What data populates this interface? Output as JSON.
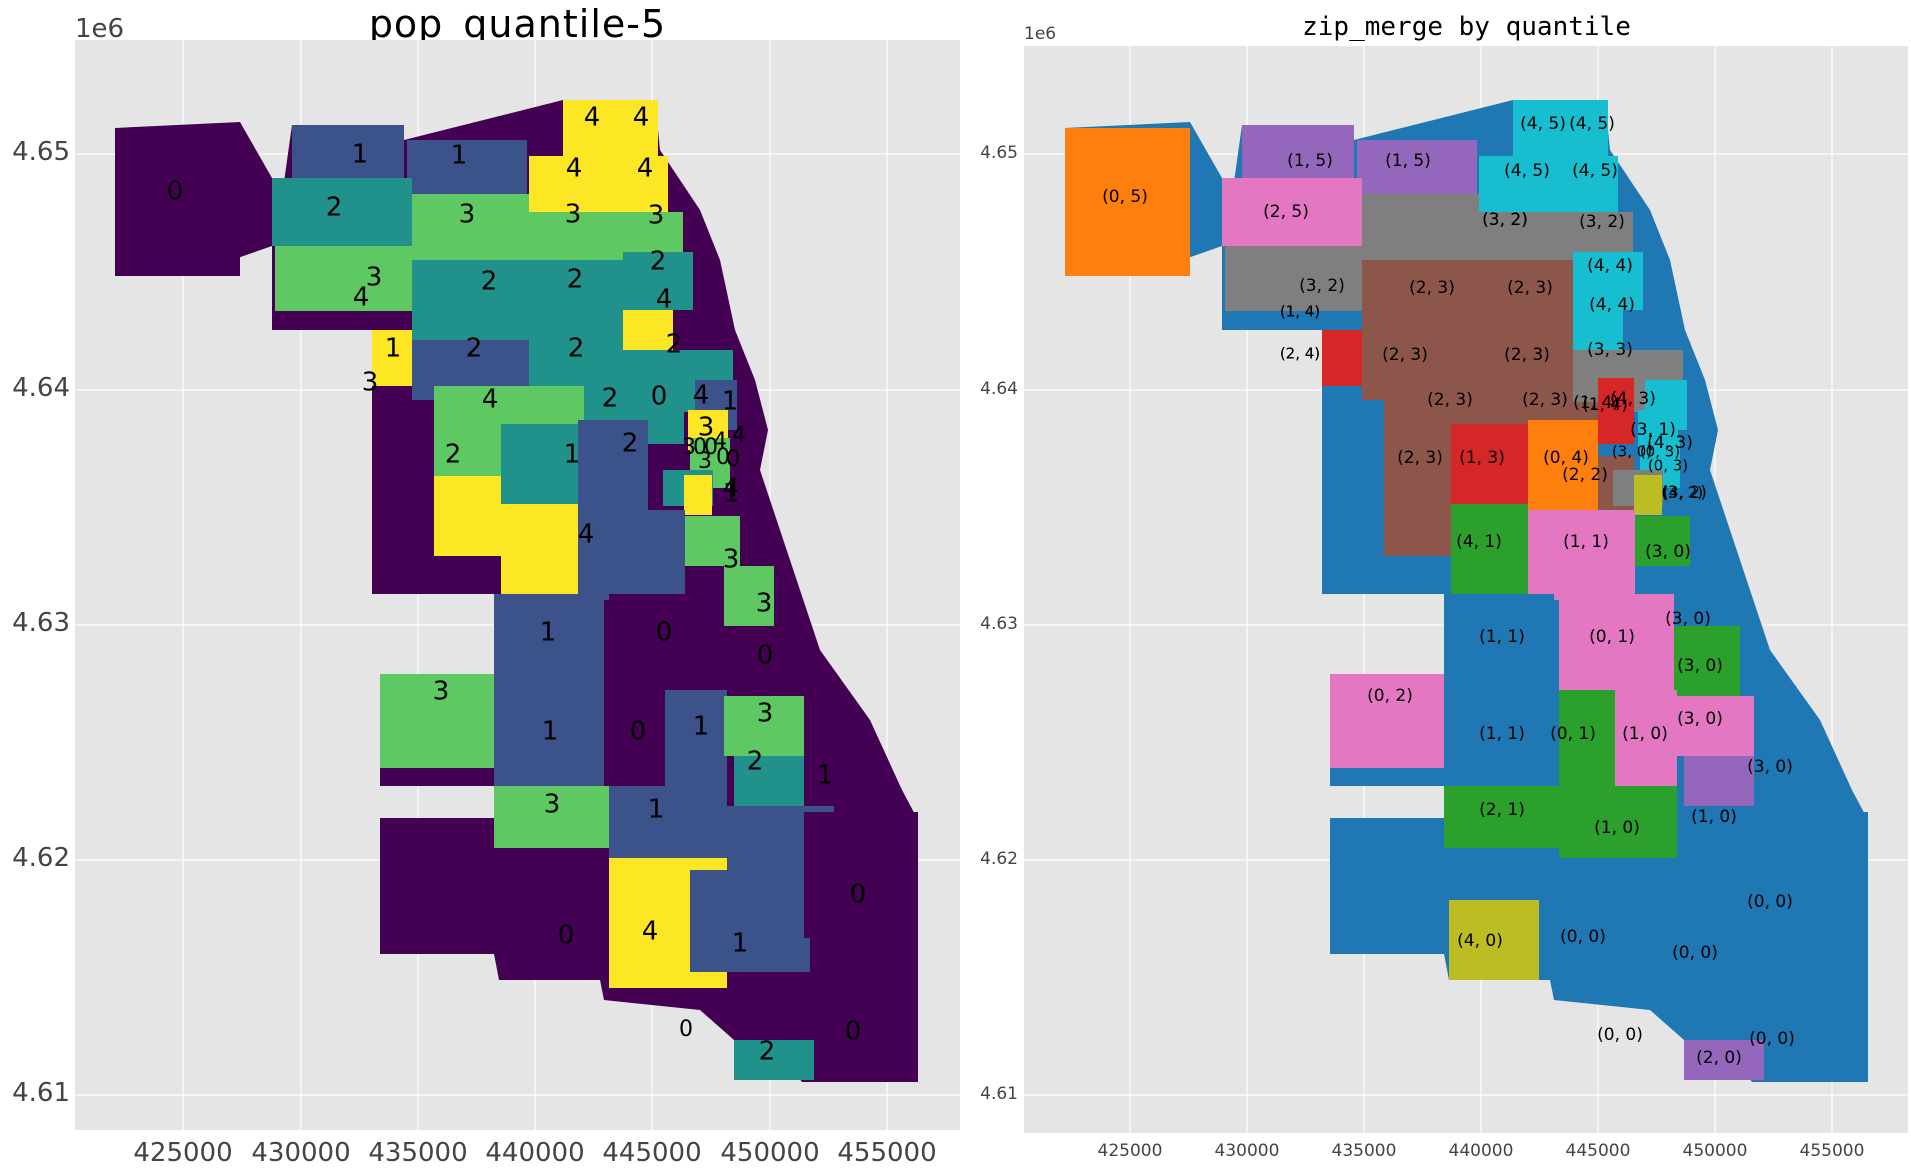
{
  "left_panel": {
    "title": "pop_quantile-5",
    "exponent_label": "1e6",
    "x_ticks": [
      "425000",
      "430000",
      "435000",
      "440000",
      "445000",
      "450000",
      "455000"
    ],
    "y_ticks": [
      "4.65",
      "4.64",
      "4.63",
      "4.62",
      "4.61"
    ],
    "palette": {
      "0": "#440154",
      "1": "#3b528b",
      "2": "#21918c",
      "3": "#5ec962",
      "4": "#fde725"
    },
    "regions": [
      {
        "label": "0",
        "value": 0
      },
      {
        "label": "1",
        "value": 1
      },
      {
        "label": "1",
        "value": 1
      },
      {
        "label": "2",
        "value": 2
      },
      {
        "label": "4",
        "value": 4
      },
      {
        "label": "4",
        "value": 4
      },
      {
        "label": "4",
        "value": 4
      },
      {
        "label": "4",
        "value": 4
      },
      {
        "label": "3",
        "value": 3
      },
      {
        "label": "3",
        "value": 3
      },
      {
        "label": "3",
        "value": 3
      },
      {
        "label": "3",
        "value": 3
      },
      {
        "label": "2",
        "value": 2
      },
      {
        "label": "2",
        "value": 2
      },
      {
        "label": "2",
        "value": 2
      },
      {
        "label": "4",
        "value": 4
      },
      {
        "label": "4",
        "value": 4
      },
      {
        "label": "1",
        "value": 1
      },
      {
        "label": "2",
        "value": 2
      },
      {
        "label": "2",
        "value": 2
      },
      {
        "label": "3",
        "value": 3
      },
      {
        "label": "2",
        "value": 2
      },
      {
        "label": "2",
        "value": 2
      },
      {
        "label": "1",
        "value": 1
      },
      {
        "label": "4",
        "value": 4
      },
      {
        "label": "3",
        "value": 3
      },
      {
        "label": "4",
        "value": 4
      },
      {
        "label": "2",
        "value": 2
      },
      {
        "label": "1",
        "value": 1
      },
      {
        "label": "0",
        "value": 0
      },
      {
        "label": "2",
        "value": 2
      },
      {
        "label": "4",
        "value": 4
      },
      {
        "label": "4",
        "value": 4
      },
      {
        "label": "1",
        "value": 1
      },
      {
        "label": "3",
        "value": 3
      },
      {
        "label": "1",
        "value": 1
      },
      {
        "label": "0",
        "value": 0
      },
      {
        "label": "3",
        "value": 3
      },
      {
        "label": "3",
        "value": 3
      },
      {
        "label": "0",
        "value": 0
      },
      {
        "label": "1",
        "value": 1
      },
      {
        "label": "0",
        "value": 0
      },
      {
        "label": "1",
        "value": 1
      },
      {
        "label": "3",
        "value": 3
      },
      {
        "label": "2",
        "value": 2
      },
      {
        "label": "3",
        "value": 3
      },
      {
        "label": "1",
        "value": 1
      },
      {
        "label": "1",
        "value": 1
      },
      {
        "label": "0",
        "value": 0
      },
      {
        "label": "4",
        "value": 4
      },
      {
        "label": "1",
        "value": 1
      },
      {
        "label": "0",
        "value": 0
      },
      {
        "label": "0",
        "value": 0
      },
      {
        "label": "2",
        "value": 2
      }
    ],
    "extra_labels": [
      "3",
      "0",
      "0",
      "4",
      "0",
      "0",
      "4",
      "3",
      "0"
    ]
  },
  "right_panel": {
    "title": "zip_merge by quantile",
    "exponent_label": "1e6",
    "x_ticks": [
      "425000",
      "430000",
      "435000",
      "440000",
      "445000",
      "450000",
      "455000"
    ],
    "y_ticks": [
      "4.65",
      "4.64",
      "4.63",
      "4.62",
      "4.61"
    ],
    "palette": {
      "(0, 0)": "#1f77b4",
      "(0, 1)": "#1f77b4",
      "(0, 2)": "#1f77b4",
      "(0, 3)": "#ff7f0e",
      "(0, 4)": "#ff7f0e",
      "(0, 5)": "#ff7f0e",
      "(1, 0)": "#2ca02c",
      "(1, 1)": "#2ca02c",
      "(1, 3)": "#d62728",
      "(1, 4)": "#d62728",
      "(1, 5)": "#9467bd",
      "(2, 0)": "#9467bd",
      "(2, 1)": "#9467bd",
      "(2, 2)": "#8c564b",
      "(2, 3)": "#8c564b",
      "(2, 5)": "#e377c2",
      "(3, 0)": "#e377c2",
      "(3, 1)": "#17becf",
      "(3, 2)": "#7f7f7f",
      "(3, 3)": "#7f7f7f",
      "(4, 0)": "#bcbd22",
      "(4, 1)": "#bcbd22",
      "(4, 3)": "#17becf",
      "(4, 4)": "#17becf",
      "(4, 5)": "#17becf"
    },
    "regions": [
      {
        "label": "(0, 5)"
      },
      {
        "label": "(1, 5)"
      },
      {
        "label": "(1, 5)"
      },
      {
        "label": "(2, 5)"
      },
      {
        "label": "(4, 5)"
      },
      {
        "label": "(4, 5)"
      },
      {
        "label": "(4, 5)"
      },
      {
        "label": "(4, 5)"
      },
      {
        "label": "(3, 2)"
      },
      {
        "label": "(3, 2)"
      },
      {
        "label": "(3, 2)"
      },
      {
        "label": "(3, 2)"
      },
      {
        "label": "(2, 3)"
      },
      {
        "label": "(2, 3)"
      },
      {
        "label": "(4, 4)"
      },
      {
        "label": "(4, 4)"
      },
      {
        "label": "(1, 4)"
      },
      {
        "label": "(2, 3)"
      },
      {
        "label": "(2, 3)"
      },
      {
        "label": "(3, 3)"
      },
      {
        "label": "(2, 3)"
      },
      {
        "label": "(2, 3)"
      },
      {
        "label": "(1, 4)"
      },
      {
        "label": "(4, 3)"
      },
      {
        "label": "(3, 1)"
      },
      {
        "label": "(4, 3)"
      },
      {
        "label": "(2, 3)"
      },
      {
        "label": "(1, 3)"
      },
      {
        "label": "(0, 4)"
      },
      {
        "label": "(2, 2)"
      },
      {
        "label": "(3, 2)"
      },
      {
        "label": "(4, 1)"
      },
      {
        "label": "(1, 1)"
      },
      {
        "label": "(3, 0)"
      },
      {
        "label": "(1, 1)"
      },
      {
        "label": "(0, 1)"
      },
      {
        "label": "(3, 0)"
      },
      {
        "label": "(0, 2)"
      },
      {
        "label": "(3, 0)"
      },
      {
        "label": "(1, 1)"
      },
      {
        "label": "(0, 1)"
      },
      {
        "label": "(1, 0)"
      },
      {
        "label": "(3, 0)"
      },
      {
        "label": "(3, 0)"
      },
      {
        "label": "(2, 1)"
      },
      {
        "label": "(1, 0)"
      },
      {
        "label": "(1, 0)"
      },
      {
        "label": "(0, 0)"
      },
      {
        "label": "(4, 0)"
      },
      {
        "label": "(0, 0)"
      },
      {
        "label": "(0, 0)"
      },
      {
        "label": "(0, 0)"
      },
      {
        "label": "(0, 0)"
      },
      {
        "label": "(2, 0)"
      }
    ],
    "extra_labels": [
      "(3, 0)",
      "(0, 3)",
      "(4, 2)",
      "(0, 3)",
      "(1, 4)",
      "(2, 4)",
      "(1, 4)",
      "(2, 4)"
    ]
  }
}
